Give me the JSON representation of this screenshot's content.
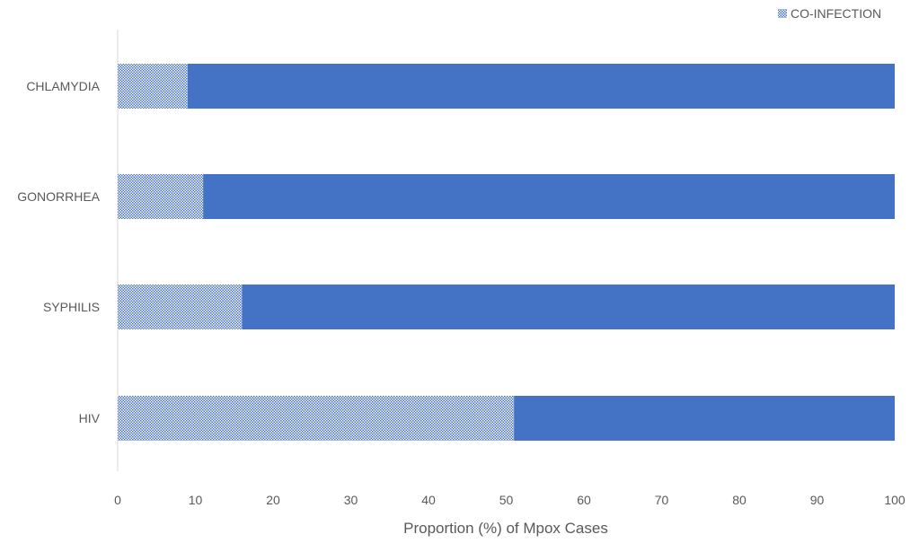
{
  "chart_data": {
    "type": "bar",
    "orientation": "horizontal",
    "stacked": true,
    "categories": [
      "CHLAMYDIA",
      "GONORRHEA",
      "SYPHILIS",
      "HIV"
    ],
    "series": [
      {
        "name": "CO-INFECTION",
        "values": [
          9,
          11,
          16,
          51
        ],
        "color": "#4472C4",
        "pattern": "dotted"
      },
      {
        "values": [
          91,
          89,
          84,
          49
        ],
        "color": "#4472C4",
        "pattern": "solid"
      }
    ],
    "xlabel": "Proportion (%) of Mpox Cases",
    "ylabel": "",
    "xlim": [
      0,
      100
    ],
    "xticks": [
      0,
      10,
      20,
      30,
      40,
      50,
      60,
      70,
      80,
      90,
      100
    ],
    "grid": false,
    "legend_position": "top-right"
  },
  "legend": {
    "label": "CO-INFECTION"
  },
  "colors": {
    "bar": "#4472C4",
    "axis_text": "#595959",
    "axis_line": "#D9D9D9"
  }
}
